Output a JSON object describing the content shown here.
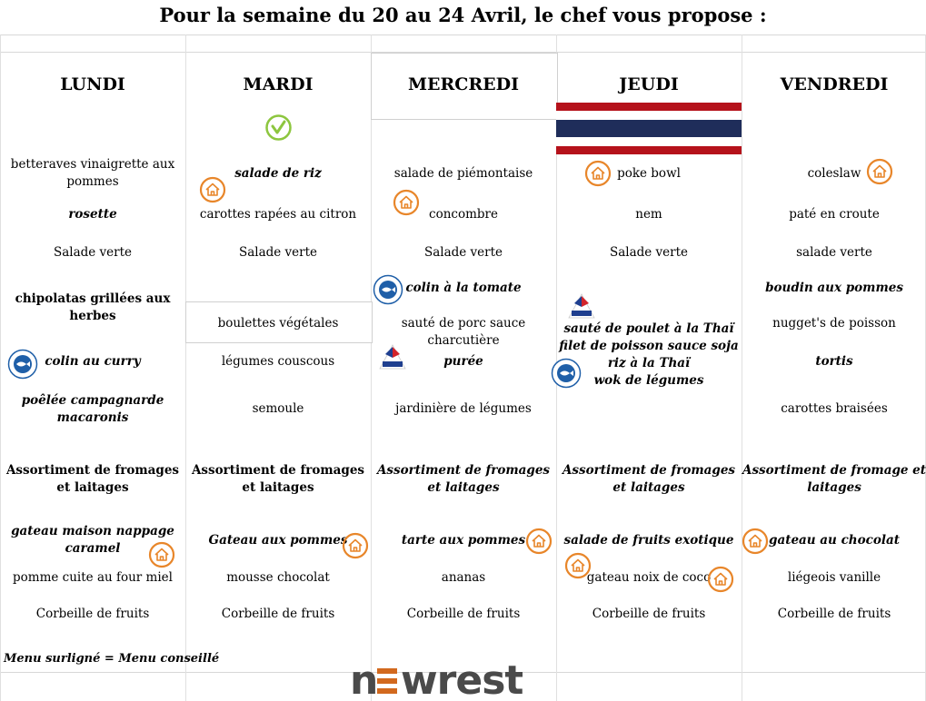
{
  "title": "Pour la semaine du 20 au 24 Avril, le chef vous propose :",
  "days": [
    "LUNDI",
    "MARDI",
    "MERCREDI",
    "JEUDI",
    "VENDREDI"
  ],
  "menu": {
    "lundi": {
      "starter1": "betteraves vinaigrette aux pommes",
      "starter2": "rosette",
      "starter3": "Salade verte",
      "main1": "chipolatas grillées aux herbes",
      "main2": "colin au curry",
      "side1": "poêlée campagnarde macaronis",
      "cheese": "Assortiment de fromages et laitages",
      "dessert1": "gateau maison nappage caramel",
      "dessert2": "pomme cuite au four miel",
      "dessert3": "Corbeille de fruits"
    },
    "mardi": {
      "starter1": "salade de riz",
      "starter2": "carottes rapées au citron",
      "starter3": "Salade verte",
      "main1": "boulettes végétales",
      "main2": "légumes couscous",
      "side1": "semoule",
      "cheese": "Assortiment de fromages et laitages",
      "dessert1": "Gateau aux pommes",
      "dessert2": "mousse chocolat",
      "dessert3": "Corbeille de fruits"
    },
    "mercredi": {
      "starter1": "salade de piémontaise",
      "starter2": "concombre",
      "starter3": "Salade  verte",
      "main1": "colin à la tomate",
      "main2": "sauté de porc sauce charcutière",
      "main3": "purée",
      "side1": "jardinière de légumes",
      "cheese": "Assortiment de fromages et laitages",
      "dessert1": "tarte aux pommes",
      "dessert2": "ananas",
      "dessert3": "Corbeille de fruits"
    },
    "jeudi": {
      "starter1": "poke bowl",
      "starter2": "nem",
      "starter3": "Salade verte",
      "main1": "sauté de poulet à la Thaï",
      "main2": "filet de poisson sauce soja",
      "main3": "riz à la Thaï",
      "main4": "wok de légumes",
      "cheese": "Assortiment de fromages et laitages",
      "dessert1": "salade de fruits exotique",
      "dessert2": "gateau noix de coco",
      "dessert3": "Corbeille de fruits"
    },
    "vendredi": {
      "starter1": "coleslaw",
      "starter2": "paté en croute",
      "starter3": "salade verte",
      "main1": "boudin aux pommes",
      "main2": "nugget's de poisson",
      "main3": "tortis",
      "side1": "carottes braisées",
      "cheese": "Assortiment de fromage et laitages",
      "dessert1": "gateau au chocolat",
      "dessert2": "liégeois vanille",
      "dessert3": "Corbeille de fruits"
    }
  },
  "footer_note": "Menu surligné = Menu conseillé",
  "logo_text": "newrest",
  "colors": {
    "house_icon": "#e8862a",
    "veggie_icon": "#8dc63f",
    "thai_red": "#b5121b",
    "thai_blue": "#1f2d5a",
    "logo_text": "#4a4a4a",
    "logo_accent": "#d2691e"
  },
  "icons": [
    "house-icon",
    "veggie-icon",
    "thai-flag-icon",
    "peche-durable-icon",
    "viandes-de-france-icon"
  ]
}
